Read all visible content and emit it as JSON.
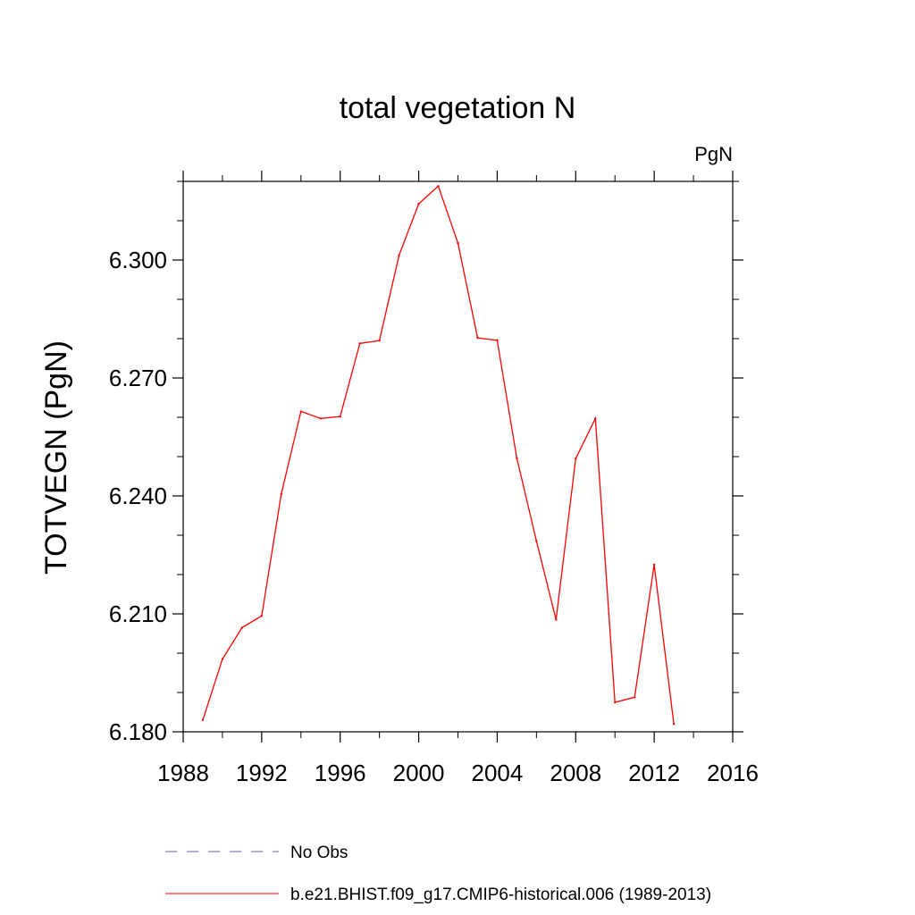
{
  "chart_data": {
    "type": "line",
    "title": "total vegetation N",
    "units": "PgN",
    "ylabel": "TOTVEGN  (PgN)",
    "xlabel": "",
    "xlim": [
      1988,
      2016
    ],
    "ylim": [
      6.18,
      6.32
    ],
    "x_ticks": [
      1988,
      1992,
      1996,
      2000,
      2004,
      2008,
      2012,
      2016
    ],
    "x_tick_labels": [
      "1988",
      "1992",
      "1996",
      "2000",
      "2004",
      "2008",
      "2012",
      "2016"
    ],
    "y_ticks": [
      6.18,
      6.21,
      6.24,
      6.27,
      6.3
    ],
    "y_tick_labels": [
      "6.180",
      "6.210",
      "6.240",
      "6.270",
      "6.300"
    ],
    "y_minor_step": 0.01,
    "x_minor_step": 2,
    "grid": false,
    "legend_position": "bottom",
    "series": [
      {
        "name": "No Obs",
        "style": "dashed",
        "color": "#5a5aa8",
        "x": [],
        "values": []
      },
      {
        "name": "b.e21.BHIST.f09_g17.CMIP6-historical.006 (1989-2013)",
        "style": "solid",
        "color": "#ff0000",
        "x": [
          1989,
          1990,
          1991,
          1992,
          1993,
          1994,
          1995,
          1996,
          1997,
          1998,
          1999,
          2000,
          2001,
          2002,
          2003,
          2004,
          2005,
          2006,
          2007,
          2008,
          2009,
          2010,
          2011,
          2012,
          2013
        ],
        "values": [
          6.183,
          6.1985,
          6.2065,
          6.2095,
          6.2405,
          6.2615,
          6.2597,
          6.2602,
          6.2788,
          6.2795,
          6.3012,
          6.3143,
          6.3188,
          6.3043,
          6.2802,
          6.2796,
          6.2496,
          6.2285,
          6.2085,
          6.2495,
          6.2597,
          6.1875,
          6.1888,
          6.2225,
          6.182
        ]
      }
    ]
  }
}
